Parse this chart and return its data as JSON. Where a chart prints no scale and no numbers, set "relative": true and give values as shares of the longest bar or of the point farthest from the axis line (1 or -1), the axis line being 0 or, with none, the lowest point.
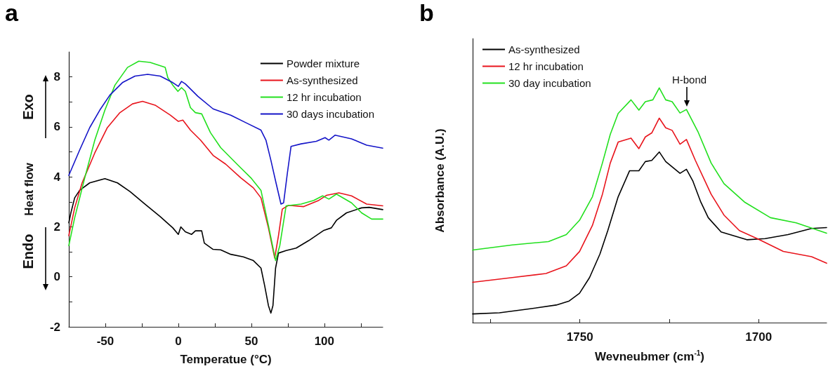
{
  "chart_data": [
    {
      "type": "line",
      "title": "a",
      "xlabel": "Temperatue (°C)",
      "ylabel": "Heat flow",
      "annotations": [
        "Exo",
        "Endo"
      ],
      "xlim": [
        -75,
        140
      ],
      "xticks": [
        -50,
        {
          "value": -25,
          "label": null
        },
        0,
        {
          "value": 25,
          "label": null
        },
        50,
        {
          "value": 75,
          "label": null
        },
        100,
        {
          "value": 125,
          "label": null
        }
      ],
      "ylim": [
        -2,
        9
      ],
      "yticks": [
        -2,
        {
          "value": -1,
          "label": null
        },
        0,
        {
          "value": 1,
          "label": null
        },
        2,
        {
          "value": 3,
          "label": null
        },
        4,
        {
          "value": 5,
          "label": null
        },
        6,
        {
          "value": 7,
          "label": null
        },
        8
      ],
      "grid": false,
      "legend": "top right",
      "marker": "none",
      "line_style": "solid",
      "series": [
        {
          "name": "Powder mixture",
          "color": "#000000",
          "x": [
            -75,
            -73.6,
            -71,
            -67.6,
            -60.7,
            -50.3,
            -41.7,
            -33.1,
            -22.8,
            -12.4,
            -3.8,
            0,
            1.7,
            4.8,
            9.1,
            11.7,
            16,
            17.8,
            23.8,
            29,
            35.9,
            44.5,
            51.4,
            56.6,
            59.1,
            61.7,
            63.4,
            64.8,
            66.6,
            68.6,
            73.8,
            80.7,
            89.3,
            99.7,
            104.8,
            108.3,
            115.2,
            125.5,
            130.7,
            140
          ],
          "values": [
            2.16,
            2.56,
            3.16,
            3.46,
            3.76,
            3.93,
            3.76,
            3.41,
            2.91,
            2.41,
            1.96,
            1.7,
            2.0,
            1.8,
            1.7,
            1.84,
            1.84,
            1.35,
            1.1,
            1.08,
            0.9,
            0.8,
            0.65,
            0.35,
            -0.35,
            -1.15,
            -1.45,
            -1.15,
            0.35,
            0.95,
            1.05,
            1.15,
            1.45,
            1.86,
            1.96,
            2.26,
            2.56,
            2.76,
            2.78,
            2.69
          ]
        },
        {
          "name": "As-synthesized",
          "color": "#e8141c",
          "x": [
            -75,
            -71,
            -65.9,
            -57.2,
            -48.6,
            -40,
            -31.4,
            -24.5,
            -15.9,
            -5.5,
            0,
            3.1,
            8.3,
            15.2,
            23.8,
            32.4,
            42.8,
            51.4,
            56.6,
            61.7,
            66,
            68.6,
            71.2,
            75.5,
            85.9,
            96.2,
            101.4,
            110,
            118.6,
            129,
            140
          ],
          "values": [
            1.65,
            2.76,
            3.76,
            4.96,
            5.97,
            6.57,
            6.92,
            7.02,
            6.87,
            6.47,
            6.22,
            6.27,
            5.87,
            5.47,
            4.86,
            4.51,
            3.96,
            3.56,
            3.16,
            1.96,
            0.75,
            1.65,
            2.71,
            2.86,
            2.81,
            3.06,
            3.26,
            3.36,
            3.24,
            2.91,
            2.84
          ]
        },
        {
          "name": "12 hr incubation",
          "color": "#22e01e",
          "x": [
            -75,
            -71,
            -64.1,
            -57.2,
            -50.3,
            -43.4,
            -34.8,
            -27.1,
            -19.3,
            -9,
            -7.2,
            -3.8,
            -0.3,
            2.2,
            4.8,
            8.3,
            11.7,
            16,
            22,
            29,
            41,
            49.7,
            56.6,
            61.7,
            66.6,
            69.5,
            73.8,
            84.1,
            92.8,
            98.8,
            103.1,
            108.3,
            118.6,
            125.5,
            132.4,
            140
          ],
          "values": [
            1.25,
            2.36,
            3.96,
            5.47,
            6.67,
            7.67,
            8.38,
            8.63,
            8.58,
            8.38,
            7.97,
            7.67,
            7.42,
            7.57,
            7.42,
            6.77,
            6.57,
            6.52,
            5.77,
            5.17,
            4.46,
            3.96,
            3.46,
            2.06,
            0.65,
            1.25,
            2.84,
            2.91,
            3.06,
            3.24,
            3.11,
            3.31,
            2.96,
            2.56,
            2.31,
            2.31
          ]
        },
        {
          "name": "30 days incubation",
          "color": "#1414c8",
          "x": [
            -75,
            -67.6,
            -60.7,
            -53.8,
            -46.9,
            -38.3,
            -29.7,
            -21,
            -12.4,
            -3.8,
            0,
            2.2,
            4.8,
            13.4,
            23.8,
            35.9,
            46.2,
            56.6,
            60,
            63.4,
            66.9,
            70.3,
            72.1,
            74.7,
            77.2,
            84.1,
            94.5,
            100.5,
            103.1,
            107.4,
            118.6,
            129,
            140
          ],
          "values": [
            4.06,
            5.07,
            5.97,
            6.67,
            7.27,
            7.77,
            8.03,
            8.1,
            8.03,
            7.77,
            7.62,
            7.82,
            7.72,
            7.22,
            6.72,
            6.47,
            6.17,
            5.87,
            5.47,
            4.66,
            3.76,
            2.91,
            2.96,
            4.16,
            5.22,
            5.32,
            5.42,
            5.57,
            5.47,
            5.67,
            5.52,
            5.27,
            5.15
          ]
        }
      ]
    },
    {
      "type": "line",
      "title": "b",
      "xlabel": "Wevneubmer (cm$^{-1}$)",
      "ylabel": "Absorbance (A.U.)",
      "relative": true,
      "annotations": [
        {
          "text": "H-bond",
          "x": 1720,
          "y": 0.913
        }
      ],
      "xlim": [
        1780,
        1681
      ],
      "xticks": [
        {
          "value": 1775,
          "label": null
        },
        1750,
        {
          "value": 1725,
          "label": null
        },
        1700
      ],
      "grid": false,
      "legend": "top left",
      "marker": "none",
      "line_style": "solid",
      "series": [
        {
          "name": "As-synthesized",
          "color": "#000000",
          "x": [
            1780,
            1772.5,
            1763.9,
            1756.6,
            1753,
            1750.1,
            1747.3,
            1744.4,
            1742.2,
            1739.3,
            1736.1,
            1733.5,
            1731.7,
            1729.9,
            1727.8,
            1726,
            1722,
            1720.2,
            1718.4,
            1716.2,
            1714.1,
            1710.5,
            1703.3,
            1698.2,
            1691.8,
            1685.2,
            1681
          ],
          "values": [
            0.037,
            0.042,
            0.059,
            0.075,
            0.092,
            0.125,
            0.192,
            0.292,
            0.392,
            0.536,
            0.647,
            0.647,
            0.686,
            0.691,
            0.727,
            0.686,
            0.636,
            0.653,
            0.603,
            0.514,
            0.447,
            0.386,
            0.353,
            0.358,
            0.375,
            0.401,
            0.405
          ]
        },
        {
          "name": "12 hr incubation",
          "color": "#e8141c",
          "x": [
            1780,
            1768.9,
            1759.5,
            1753.8,
            1750.1,
            1746.5,
            1743.7,
            1741.5,
            1739.3,
            1735.7,
            1733.5,
            1731.7,
            1729.9,
            1727.8,
            1726,
            1724.2,
            1722,
            1720.2,
            1717.7,
            1713.3,
            1709.7,
            1705.4,
            1700.4,
            1693.1,
            1685.2,
            1681
          ],
          "values": [
            0.172,
            0.192,
            0.209,
            0.242,
            0.303,
            0.414,
            0.547,
            0.68,
            0.769,
            0.786,
            0.741,
            0.791,
            0.808,
            0.871,
            0.83,
            0.819,
            0.76,
            0.78,
            0.691,
            0.547,
            0.458,
            0.392,
            0.358,
            0.303,
            0.281,
            0.253
          ]
        },
        {
          "name": "30 day incubation",
          "color": "#22e01e",
          "x": [
            1780,
            1768.9,
            1758.8,
            1753.8,
            1750.1,
            1746.5,
            1743.7,
            1741.5,
            1739.3,
            1735.7,
            1733.5,
            1731.7,
            1729.6,
            1727.8,
            1726,
            1724.2,
            1722,
            1720.2,
            1717,
            1713.3,
            1709.7,
            1704,
            1696.7,
            1689.5,
            1681
          ],
          "values": [
            0.309,
            0.331,
            0.345,
            0.375,
            0.436,
            0.536,
            0.68,
            0.802,
            0.891,
            0.949,
            0.905,
            0.941,
            0.949,
            1.0,
            0.949,
            0.941,
            0.893,
            0.908,
            0.814,
            0.68,
            0.592,
            0.514,
            0.447,
            0.425,
            0.381
          ]
        }
      ]
    }
  ]
}
